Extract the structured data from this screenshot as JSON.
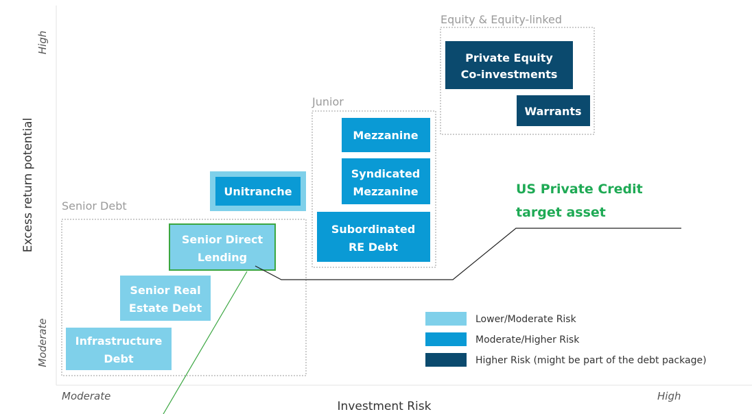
{
  "axes": {
    "y_label": "Excess return potential",
    "y_high": "High",
    "y_low": "Moderate",
    "x_label": "Investment Risk",
    "x_low": "Moderate",
    "x_high": "High"
  },
  "groups": [
    {
      "label": "Senior Debt"
    },
    {
      "label": "Junior"
    },
    {
      "label": "Equity & Equity-linked"
    }
  ],
  "boxes": [
    {
      "lines": [
        "Infrastructure",
        "Debt"
      ]
    },
    {
      "lines": [
        "Senior Real",
        "Estate Debt"
      ]
    },
    {
      "lines": [
        "Senior Direct",
        "Lending"
      ]
    },
    {
      "lines": [
        "Unitranche"
      ]
    },
    {
      "lines": [
        "Mezzanine"
      ]
    },
    {
      "lines": [
        "Syndicated",
        "Mezzanine"
      ]
    },
    {
      "lines": [
        "Subordinated",
        "RE Debt"
      ]
    },
    {
      "lines": [
        "Private Equity",
        "Co-investments"
      ]
    },
    {
      "lines": [
        "Warrants"
      ]
    }
  ],
  "callout": {
    "lines": [
      "US Private Credit",
      "target asset"
    ]
  },
  "legend": [
    {
      "label": "Lower/Moderate Risk"
    },
    {
      "label": "Moderate/Higher Risk"
    },
    {
      "label": "Higher Risk (might be part of the debt package)"
    }
  ]
}
